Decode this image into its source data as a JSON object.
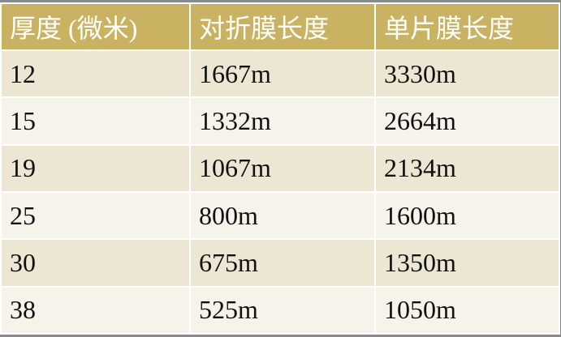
{
  "table": {
    "headers": [
      "厚度 (微米)",
      "对折膜长度",
      "单片膜长度"
    ],
    "rows": [
      [
        "12",
        "1667m",
        "3330m"
      ],
      [
        "15",
        "1332m",
        "2664m"
      ],
      [
        "19",
        "1067m",
        "2134m"
      ],
      [
        "25",
        "800m",
        "1600m"
      ],
      [
        "30",
        "675m",
        "1350m"
      ],
      [
        "38",
        "525m",
        "1050m"
      ]
    ]
  },
  "colors": {
    "header_bg": "#c9b262",
    "row_odd": "#ede6d3",
    "row_even": "#f6f3eb",
    "frame": "#8a8a8a"
  }
}
